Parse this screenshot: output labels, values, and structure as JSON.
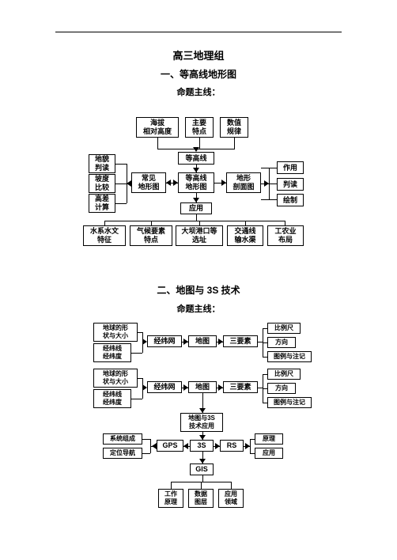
{
  "header": {
    "group": "高三地理组",
    "section1": "一、等高线地形图",
    "subtitle": "命题主线：",
    "section2": "二、地图与 3S 技术"
  },
  "diagram1": {
    "top_row": {
      "n1": "海拔\n相对高度",
      "n2": "主要\n特点",
      "n3": "数值\n规律"
    },
    "left_col": {
      "n1": "地貌\n判读",
      "n2": "坡度\n比较",
      "n3": "高差\n计算"
    },
    "mid": {
      "n1": "常见\n地形图",
      "n2": "等高线",
      "n3": "等高线\n地形图",
      "n4": "地形\n剖面图",
      "n5": "应用"
    },
    "right_col": {
      "n1": "作用",
      "n2": "判读",
      "n3": "绘制"
    },
    "bottom_row": {
      "n1": "水系水文\n特征",
      "n2": "气候要素\n特点",
      "n3": "大坝港口等\n选址",
      "n4": "交通线\n输水渠",
      "n5": "工农业\n布局"
    }
  },
  "diagram2": {
    "left_a": {
      "n1": "地球的形\n状与大小",
      "n2": "经纬线\n经纬度"
    },
    "left_b": {
      "n1": "地球的形\n状与大小",
      "n2": "经纬线\n经纬度"
    },
    "row1": {
      "n1": "经纬网",
      "n2": "地图",
      "n3": "三要素"
    },
    "right_a": {
      "n1": "比例尺",
      "n2": "方向",
      "n3": "图例与注记"
    },
    "right_b": {
      "n1": "比例尺",
      "n2": "方向",
      "n3": "图例与注记"
    },
    "center": {
      "n1": "地图与3S\n技术应用"
    },
    "left_c": {
      "n1": "系统组成",
      "n2": "定位导航"
    },
    "row3s": {
      "n1": "GPS",
      "n2": "3S",
      "n3": "RS"
    },
    "right_c": {
      "n1": "原理",
      "n2": "应用"
    },
    "gis": {
      "n1": "GIS"
    },
    "bottom": {
      "n1": "工作\n原理",
      "n2": "数据\n图层",
      "n3": "应用\n领域"
    }
  },
  "style": {
    "bg": "#ffffff",
    "stroke": "#000000",
    "title_fontsize": 13,
    "subtitle_fontsize": 11,
    "box_fontsize": 9
  }
}
